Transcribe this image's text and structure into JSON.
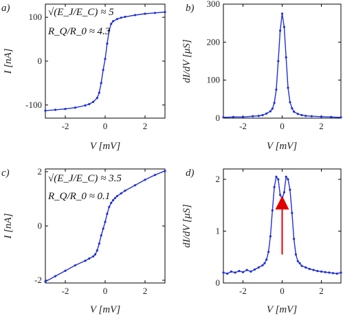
{
  "chart_data": [
    {
      "panel": "a)",
      "type": "line",
      "xlabel": "V [mV]",
      "ylabel": "I [nA]",
      "xlim": [
        -3,
        3
      ],
      "ylim": [
        -130,
        130
      ],
      "xticks": [
        -2,
        0,
        2
      ],
      "yticks": [
        -100,
        0,
        100
      ],
      "xtick_labels": [
        "-2",
        "0",
        "2"
      ],
      "ytick_labels": [
        "-100",
        "0",
        "100"
      ],
      "annotations": [
        "√(E_J/E_C) ≈ 5",
        "R_Q/R_0 ≈ 4.3"
      ],
      "series": [
        {
          "color": "#1f2fd6",
          "x": [
            -3.0,
            -2.5,
            -2.0,
            -1.5,
            -1.0,
            -0.8,
            -0.6,
            -0.4,
            -0.3,
            -0.2,
            -0.1,
            0.0,
            0.1,
            0.2,
            0.3,
            0.4,
            0.6,
            0.8,
            1.0,
            1.5,
            2.0,
            2.5,
            3.0
          ],
          "y": [
            -113,
            -111,
            -109,
            -106,
            -101,
            -98,
            -93,
            -84,
            -72,
            -50,
            -20,
            5,
            40,
            70,
            85,
            91,
            96,
            99,
            101,
            105,
            108,
            110,
            112
          ]
        }
      ]
    },
    {
      "panel": "b)",
      "type": "line",
      "xlabel": "V [mV]",
      "ylabel": "dI/dV [μS]",
      "xlim": [
        -3,
        3
      ],
      "ylim": [
        0,
        300
      ],
      "xticks": [
        -2,
        0,
        2
      ],
      "yticks": [
        0,
        100,
        200,
        300
      ],
      "xtick_labels": [
        "-2",
        "0",
        "2"
      ],
      "ytick_labels": [
        "0",
        "100",
        "200",
        "300"
      ],
      "series": [
        {
          "color": "#1f2fd6",
          "x": [
            -3.0,
            -2.5,
            -2.0,
            -1.5,
            -1.2,
            -1.0,
            -0.8,
            -0.6,
            -0.5,
            -0.4,
            -0.3,
            -0.2,
            -0.1,
            0.0,
            0.1,
            0.2,
            0.3,
            0.4,
            0.5,
            0.6,
            0.8,
            1.0,
            1.2,
            1.5,
            2.0,
            2.5,
            3.0
          ],
          "y": [
            2,
            3,
            3,
            5,
            6,
            8,
            12,
            18,
            25,
            40,
            75,
            150,
            230,
            275,
            240,
            160,
            80,
            42,
            26,
            17,
            11,
            8,
            6,
            5,
            4,
            3,
            2
          ]
        }
      ]
    },
    {
      "panel": "c)",
      "type": "line",
      "xlabel": "V [mV]",
      "ylabel": "I [nA]",
      "xlim": [
        -3,
        3
      ],
      "ylim": [
        -2.1,
        2.1
      ],
      "xticks": [
        -2,
        0,
        2
      ],
      "yticks": [
        -2,
        0,
        2
      ],
      "xtick_labels": [
        "-2",
        "0",
        "2"
      ],
      "ytick_labels": [
        "-2",
        "0",
        "2"
      ],
      "annotations": [
        "√(E_J/E_C) ≈ 3.5",
        "R_Q/R_0 ≈ 0.1"
      ],
      "series": [
        {
          "color": "#1f2fd6",
          "x": [
            -3.0,
            -2.5,
            -2.0,
            -1.5,
            -1.0,
            -0.8,
            -0.6,
            -0.5,
            -0.4,
            -0.3,
            -0.2,
            -0.1,
            0.0,
            0.1,
            0.2,
            0.3,
            0.4,
            0.5,
            0.6,
            0.8,
            1.0,
            1.5,
            2.0,
            2.5,
            3.0
          ],
          "y": [
            -2.05,
            -1.85,
            -1.65,
            -1.45,
            -1.28,
            -1.2,
            -1.12,
            -1.05,
            -0.9,
            -0.65,
            -0.35,
            -0.1,
            0.15,
            0.45,
            0.7,
            0.85,
            0.95,
            1.03,
            1.1,
            1.2,
            1.3,
            1.5,
            1.7,
            1.88,
            2.03
          ]
        }
      ]
    },
    {
      "panel": "d)",
      "type": "line",
      "xlabel": "V [mV]",
      "ylabel": "dI/dV [μS]",
      "xlim": [
        -3,
        3
      ],
      "ylim": [
        0,
        2.2
      ],
      "xticks": [
        -2,
        0,
        2
      ],
      "yticks": [
        0,
        1,
        2
      ],
      "xtick_labels": [
        "-2",
        "0",
        "2"
      ],
      "ytick_labels": [
        "0",
        "1",
        "2"
      ],
      "annotations": [
        "red upward arrow at V = 0 pointing to the dip"
      ],
      "series": [
        {
          "color": "#1f2fd6",
          "x": [
            -3.0,
            -2.8,
            -2.6,
            -2.4,
            -2.2,
            -2.0,
            -1.8,
            -1.6,
            -1.4,
            -1.2,
            -1.0,
            -0.9,
            -0.8,
            -0.7,
            -0.6,
            -0.5,
            -0.4,
            -0.3,
            -0.2,
            -0.1,
            0.0,
            0.1,
            0.2,
            0.3,
            0.4,
            0.5,
            0.6,
            0.7,
            0.8,
            0.9,
            1.0,
            1.2,
            1.4,
            1.6,
            1.8,
            2.0,
            2.2,
            2.4,
            2.6,
            2.8,
            3.0
          ],
          "y": [
            0.2,
            0.18,
            0.22,
            0.2,
            0.23,
            0.21,
            0.25,
            0.22,
            0.26,
            0.3,
            0.34,
            0.38,
            0.45,
            0.6,
            0.9,
            1.4,
            1.85,
            2.05,
            2.0,
            1.7,
            1.62,
            1.75,
            2.05,
            2.0,
            1.8,
            1.35,
            0.85,
            0.55,
            0.42,
            0.38,
            0.33,
            0.3,
            0.27,
            0.25,
            0.23,
            0.22,
            0.21,
            0.2,
            0.19,
            0.18,
            0.2
          ]
        }
      ]
    }
  ]
}
